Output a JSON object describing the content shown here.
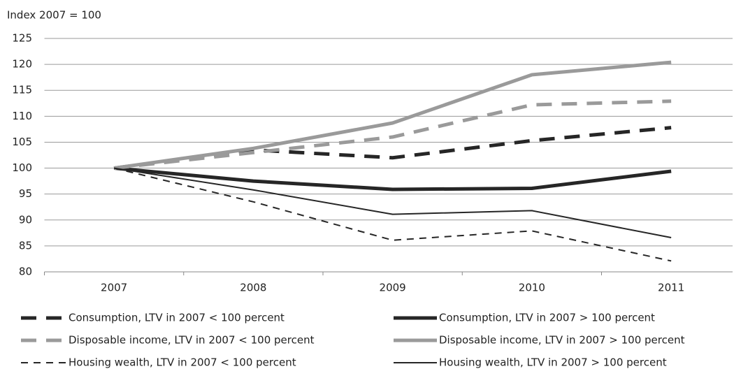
{
  "chart_data": {
    "type": "line",
    "y_axis_label": "Index 2007 = 100",
    "categories": [
      "2007",
      "2008",
      "2009",
      "2010",
      "2011"
    ],
    "ylim": [
      80,
      125
    ],
    "yticks": [
      80,
      85,
      90,
      95,
      100,
      105,
      110,
      115,
      120,
      125
    ],
    "grid": true,
    "series": [
      {
        "name": "Consumption, LTV in 2007 < 100 percent",
        "color": "#262626",
        "style": "dashed",
        "weight": "thick",
        "values": [
          100,
          103.5,
          102,
          105.3,
          107.8
        ]
      },
      {
        "name": "Consumption, LTV in 2007 > 100 percent",
        "color": "#262626",
        "style": "solid",
        "weight": "thick",
        "values": [
          100,
          97.5,
          95.9,
          96.1,
          99.4
        ]
      },
      {
        "name": "Disposable income, LTV in 2007 < 100 percent",
        "color": "#9a9a9a",
        "style": "dashed",
        "weight": "thick",
        "values": [
          100,
          103,
          106,
          112.2,
          112.9
        ]
      },
      {
        "name": "Disposable income, LTV in 2007 > 100 percent",
        "color": "#9a9a9a",
        "style": "solid",
        "weight": "thick",
        "values": [
          100,
          103.8,
          108.7,
          118,
          120.4
        ]
      },
      {
        "name": "Housing wealth, LTV in 2007 < 100 percent",
        "color": "#262626",
        "style": "dashed",
        "weight": "thin",
        "values": [
          100,
          93.5,
          86.1,
          87.9,
          82.1
        ]
      },
      {
        "name": "Housing wealth, LTV in 2007 > 100 percent",
        "color": "#262626",
        "style": "solid",
        "weight": "thin",
        "values": [
          100,
          95.8,
          91.1,
          91.8,
          86.6
        ]
      }
    ]
  }
}
